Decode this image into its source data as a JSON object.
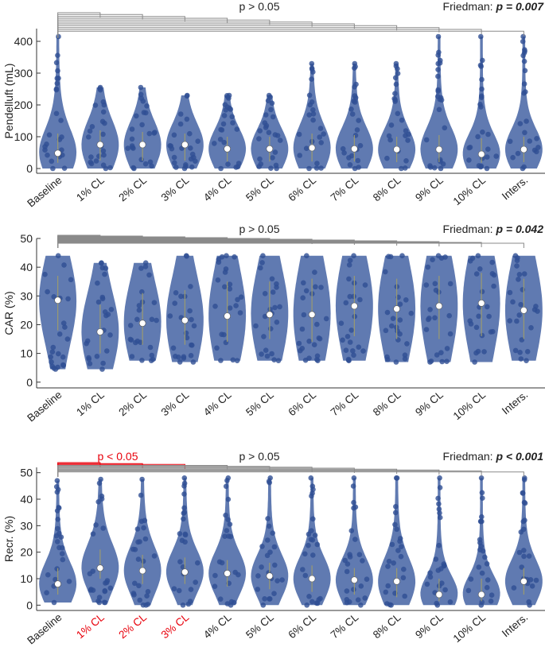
{
  "chart_data": [
    {
      "type": "violin",
      "ylabel": "Pendelluft (mL)",
      "ylim": [
        -15,
        440
      ],
      "yticks": [
        0,
        100,
        200,
        300,
        400
      ],
      "categories": [
        "Baseline",
        "1% CL",
        "2% CL",
        "3% CL",
        "4% CL",
        "5% CL",
        "6% CL",
        "7% CL",
        "8% CL",
        "9% CL",
        "10% CL",
        "Inters."
      ],
      "significant_categories": [],
      "p_label": "p > 0.05",
      "sig_label": "",
      "friedman_label": "Friedman:",
      "friedman_value": "p = 0.007",
      "median": [
        48,
        75,
        75,
        75,
        62,
        62,
        65,
        62,
        60,
        60,
        45,
        60
      ],
      "min": [
        0,
        0,
        0,
        0,
        0,
        0,
        0,
        0,
        0,
        0,
        0,
        0
      ],
      "max": [
        415,
        255,
        255,
        230,
        230,
        230,
        330,
        330,
        330,
        415,
        415,
        415
      ],
      "q1": [
        18,
        25,
        25,
        25,
        22,
        22,
        22,
        22,
        20,
        20,
        18,
        20
      ],
      "q3": [
        110,
        120,
        115,
        110,
        100,
        100,
        110,
        105,
        100,
        105,
        95,
        100
      ]
    },
    {
      "type": "violin",
      "ylabel": "CAR (%)",
      "ylim": [
        -2,
        50
      ],
      "yticks": [
        0,
        10,
        20,
        30,
        40,
        50
      ],
      "categories": [
        "Baseline",
        "1% CL",
        "2% CL",
        "3% CL",
        "4% CL",
        "5% CL",
        "6% CL",
        "7% CL",
        "8% CL",
        "9% CL",
        "10% CL",
        "Inters."
      ],
      "significant_categories": [],
      "p_label": "p > 0.05",
      "sig_label": "",
      "friedman_label": "Friedman:",
      "friedman_value": "p = 0.042",
      "median": [
        28.5,
        17.5,
        20.5,
        21.5,
        23,
        23.5,
        23.5,
        26.5,
        25.5,
        26.5,
        27.5,
        25
      ],
      "min": [
        4.5,
        4.5,
        7.5,
        7,
        7.5,
        7.5,
        7.5,
        7.5,
        7,
        7,
        7,
        7.5
      ],
      "max": [
        44,
        41.5,
        41.5,
        44,
        44,
        44,
        44,
        44,
        44,
        44,
        44,
        44
      ],
      "q1": [
        18,
        10,
        13,
        13,
        14,
        15,
        14,
        16,
        15,
        15,
        16,
        15
      ],
      "q3": [
        37,
        27,
        31,
        32,
        35,
        35,
        36,
        37,
        36,
        37,
        38,
        36
      ]
    },
    {
      "type": "violin",
      "ylabel": "Recr. (%)",
      "ylim": [
        -2,
        52
      ],
      "yticks": [
        0,
        10,
        20,
        30,
        40,
        50
      ],
      "categories": [
        "Baseline",
        "1% CL",
        "2% CL",
        "3% CL",
        "4% CL",
        "5% CL",
        "6% CL",
        "7% CL",
        "8% CL",
        "9% CL",
        "10% CL",
        "Inters."
      ],
      "significant_categories": [
        1,
        2,
        3
      ],
      "p_label": "p > 0.05",
      "sig_label": "p < 0.05",
      "friedman_label": "Friedman:",
      "friedman_value": "p < 0.001",
      "median": [
        8,
        14,
        13,
        12.5,
        12,
        11,
        10,
        9.5,
        9,
        4,
        4,
        9
      ],
      "min": [
        1,
        1,
        0,
        0,
        0,
        0,
        0,
        0,
        0,
        0,
        0,
        0
      ],
      "max": [
        47,
        47.5,
        47.5,
        48,
        48,
        48,
        48,
        48,
        48,
        48,
        48,
        48
      ],
      "q1": [
        4,
        10,
        8,
        8,
        7,
        6,
        5,
        4,
        3,
        1.5,
        1.5,
        4
      ],
      "q3": [
        14,
        21,
        19,
        18,
        17,
        16,
        15,
        14,
        14,
        10,
        10,
        14
      ]
    }
  ],
  "colors": {
    "violin": "#4a68a6",
    "dot": "#2f4f94",
    "significant": "#e8000b",
    "bracket": "#8a8a8a",
    "axis": "#333333"
  }
}
